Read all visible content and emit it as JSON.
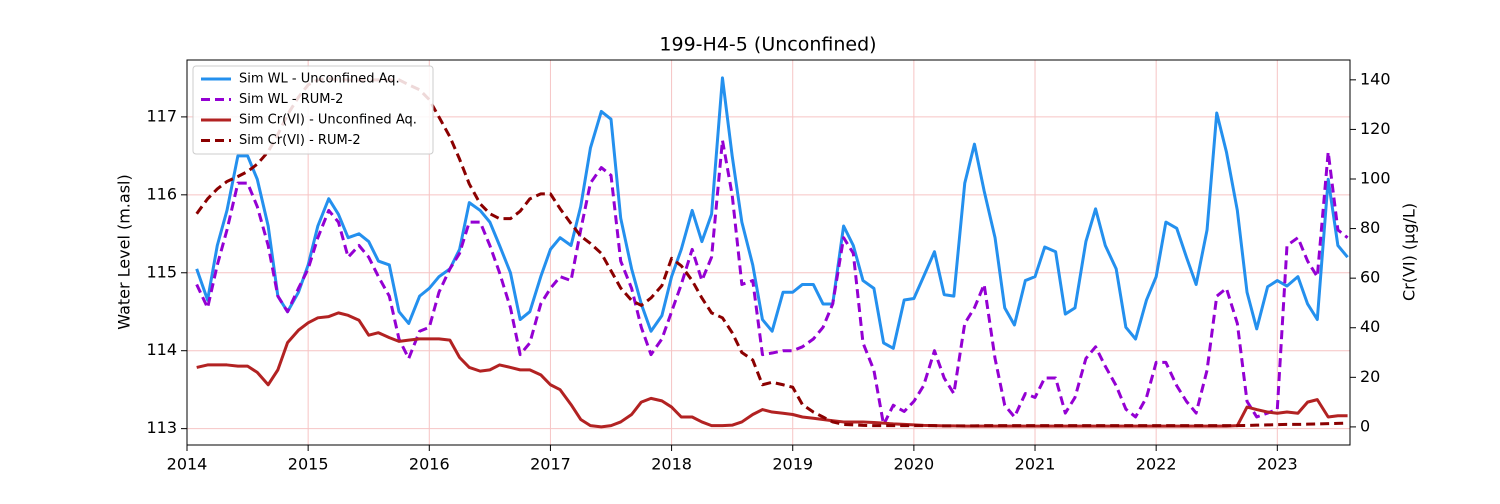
{
  "chart_data": {
    "type": "line",
    "title": "199-H4-5 (Unconfined)",
    "y_label": "Water Level (m.asl)",
    "y2_label": "Cr(VI) (µg/L)",
    "xlim": [
      2014,
      2023.6
    ],
    "xticks": [
      2014,
      2015,
      2016,
      2017,
      2018,
      2019,
      2020,
      2021,
      2022,
      2023
    ],
    "ylim": [
      112.79,
      117.73
    ],
    "yticks": [
      113,
      114,
      115,
      116,
      117
    ],
    "y2lim": [
      -7.3,
      148
    ],
    "y2ticks": [
      0,
      20,
      40,
      60,
      80,
      100,
      120,
      140
    ],
    "grid": true,
    "legend": "upper left",
    "x": [
      2014.08,
      2014.17,
      2014.25,
      2014.33,
      2014.42,
      2014.5,
      2014.58,
      2014.67,
      2014.75,
      2014.83,
      2014.92,
      2015.0,
      2015.08,
      2015.17,
      2015.25,
      2015.33,
      2015.42,
      2015.5,
      2015.58,
      2015.67,
      2015.75,
      2015.83,
      2015.92,
      2016.0,
      2016.08,
      2016.17,
      2016.25,
      2016.33,
      2016.42,
      2016.5,
      2016.58,
      2016.67,
      2016.75,
      2016.83,
      2016.92,
      2017.0,
      2017.08,
      2017.17,
      2017.25,
      2017.33,
      2017.42,
      2017.5,
      2017.58,
      2017.67,
      2017.75,
      2017.83,
      2017.92,
      2018.0,
      2018.08,
      2018.17,
      2018.25,
      2018.33,
      2018.42,
      2018.5,
      2018.58,
      2018.67,
      2018.75,
      2018.83,
      2018.92,
      2019.0,
      2019.08,
      2019.17,
      2019.25,
      2019.33,
      2019.42,
      2019.5,
      2019.58,
      2019.67,
      2019.75,
      2019.83,
      2019.92,
      2020.0,
      2020.08,
      2020.17,
      2020.25,
      2020.33,
      2020.42,
      2020.5,
      2020.58,
      2020.67,
      2020.75,
      2020.83,
      2020.92,
      2021.0,
      2021.08,
      2021.17,
      2021.25,
      2021.33,
      2021.42,
      2021.5,
      2021.58,
      2021.67,
      2021.75,
      2021.83,
      2021.92,
      2022.0,
      2022.08,
      2022.17,
      2022.25,
      2022.33,
      2022.42,
      2022.5,
      2022.58,
      2022.67,
      2022.75,
      2022.83,
      2022.92,
      2023.0,
      2023.08,
      2023.17,
      2023.25,
      2023.33,
      2023.42,
      2023.5,
      2023.58
    ],
    "series": [
      {
        "name": "Sim WL - Unconfined Aq.",
        "color": "#2490ee",
        "linestyle": "solid",
        "axis": "y",
        "values": [
          115.05,
          114.65,
          115.35,
          115.8,
          116.5,
          116.5,
          116.2,
          115.6,
          114.7,
          114.5,
          114.75,
          115.1,
          115.6,
          115.95,
          115.75,
          115.45,
          115.5,
          115.4,
          115.15,
          115.1,
          114.5,
          114.35,
          114.7,
          114.8,
          114.95,
          115.05,
          115.3,
          115.9,
          115.8,
          115.65,
          115.35,
          115.0,
          114.4,
          114.5,
          114.95,
          115.3,
          115.45,
          115.35,
          115.85,
          116.6,
          117.07,
          116.97,
          115.7,
          115.05,
          114.6,
          114.25,
          114.45,
          114.95,
          115.3,
          115.8,
          115.4,
          115.75,
          117.5,
          116.5,
          115.65,
          115.1,
          114.4,
          114.25,
          114.75,
          114.75,
          114.85,
          114.85,
          114.6,
          114.6,
          115.6,
          115.35,
          114.9,
          114.8,
          114.1,
          114.03,
          114.65,
          114.67,
          114.95,
          115.27,
          114.72,
          114.7,
          116.15,
          116.65,
          116.05,
          115.45,
          114.55,
          114.33,
          114.9,
          114.95,
          115.33,
          115.27,
          114.47,
          114.55,
          115.4,
          115.82,
          115.35,
          115.05,
          114.3,
          114.15,
          114.65,
          114.95,
          115.65,
          115.57,
          115.2,
          114.85,
          115.55,
          117.05,
          116.55,
          115.8,
          114.75,
          114.28,
          114.82,
          114.9,
          114.83,
          114.95,
          114.6,
          114.4,
          116.2,
          115.35,
          115.2
        ]
      },
      {
        "name": "Sim WL - RUM-2",
        "color": "#9400d3",
        "linestyle": "dashed",
        "axis": "y",
        "values": [
          114.85,
          114.55,
          115.1,
          115.55,
          116.15,
          116.15,
          115.85,
          115.35,
          114.7,
          114.5,
          114.8,
          115.05,
          115.45,
          115.8,
          115.65,
          115.2,
          115.35,
          115.2,
          114.95,
          114.7,
          114.15,
          113.9,
          114.25,
          114.3,
          114.75,
          115.05,
          115.25,
          115.65,
          115.65,
          115.35,
          115.0,
          114.55,
          113.95,
          114.1,
          114.6,
          114.8,
          114.95,
          114.9,
          115.55,
          116.15,
          116.35,
          116.25,
          115.15,
          114.8,
          114.3,
          113.95,
          114.15,
          114.5,
          114.85,
          115.3,
          114.9,
          115.2,
          116.7,
          116.0,
          114.85,
          114.9,
          113.95,
          113.97,
          114.0,
          114.0,
          114.05,
          114.15,
          114.3,
          114.6,
          115.45,
          115.25,
          114.1,
          113.75,
          113.05,
          113.3,
          113.22,
          113.35,
          113.55,
          114.0,
          113.65,
          113.45,
          114.35,
          114.55,
          114.85,
          113.9,
          113.3,
          113.15,
          113.45,
          113.4,
          113.65,
          113.65,
          113.2,
          113.4,
          113.9,
          114.05,
          113.8,
          113.55,
          113.25,
          113.15,
          113.4,
          113.85,
          113.85,
          113.55,
          113.35,
          113.2,
          113.75,
          114.7,
          114.8,
          114.35,
          113.35,
          113.15,
          113.2,
          113.25,
          115.35,
          115.45,
          115.15,
          114.95,
          116.55,
          115.55,
          115.45
        ]
      },
      {
        "name": "Sim Cr(VI) - Unconfined Aq.",
        "color": "#b22222",
        "linestyle": "solid",
        "axis": "y2",
        "values": [
          24,
          25,
          25,
          25,
          24.5,
          24.5,
          22,
          17,
          23,
          34,
          39,
          42,
          44,
          44.5,
          46,
          45,
          43,
          37,
          38,
          36,
          34.5,
          35,
          35.5,
          35.5,
          35.5,
          35,
          28,
          24,
          22.5,
          23,
          25,
          24,
          23,
          23,
          21,
          17,
          15,
          9,
          3,
          0.5,
          0,
          0.5,
          2,
          5,
          10,
          11.5,
          10.5,
          8,
          4,
          4,
          2,
          0.5,
          0.5,
          0.7,
          2,
          5,
          7,
          6,
          5.5,
          5,
          4,
          3.5,
          3,
          2.5,
          2,
          2,
          2,
          1.8,
          1.5,
          1.2,
          1,
          0.8,
          0.6,
          0.5,
          0.4,
          0.4,
          0.3,
          0.3,
          0.3,
          0.3,
          0.3,
          0.3,
          0.3,
          0.3,
          0.3,
          0.3,
          0.3,
          0.3,
          0.3,
          0.3,
          0.3,
          0.3,
          0.3,
          0.3,
          0.3,
          0.3,
          0.3,
          0.3,
          0.3,
          0.3,
          0.3,
          0.3,
          0.3,
          0.5,
          8,
          7,
          6,
          5.5,
          6,
          5.5,
          10,
          11,
          4,
          4.5,
          4.5
        ]
      },
      {
        "name": "Sim Cr(VI) - RUM-2",
        "color": "#8b0000",
        "linestyle": "dashed",
        "axis": "y2",
        "values": [
          86,
          92,
          96,
          99,
          101,
          103,
          106,
          111,
          118,
          126,
          133,
          138,
          140,
          140.5,
          140,
          140,
          140,
          140,
          140,
          140,
          140,
          138,
          136,
          132,
          125,
          117,
          108,
          98,
          90,
          86,
          84,
          84,
          87,
          92,
          94,
          94,
          88,
          82,
          77,
          74,
          70,
          63,
          56,
          51,
          49,
          52,
          57,
          68,
          65,
          59,
          52,
          46,
          44,
          38,
          30,
          27,
          17,
          18,
          17,
          16,
          9,
          6,
          4,
          2,
          1,
          0.8,
          0.6,
          0.5,
          0.5,
          0.5,
          0.5,
          0.5,
          0.5,
          0.5,
          0.4,
          0.4,
          0.4,
          0.4,
          0.5,
          0.5,
          0.5,
          0.5,
          0.5,
          0.5,
          0.5,
          0.5,
          0.5,
          0.5,
          0.5,
          0.5,
          0.5,
          0.5,
          0.5,
          0.5,
          0.5,
          0.5,
          0.5,
          0.5,
          0.5,
          0.5,
          0.5,
          0.5,
          0.5,
          0.5,
          0.6,
          0.7,
          0.8,
          0.9,
          1,
          1,
          1.1,
          1.2,
          1.3,
          1.4,
          1.5
        ]
      }
    ]
  }
}
